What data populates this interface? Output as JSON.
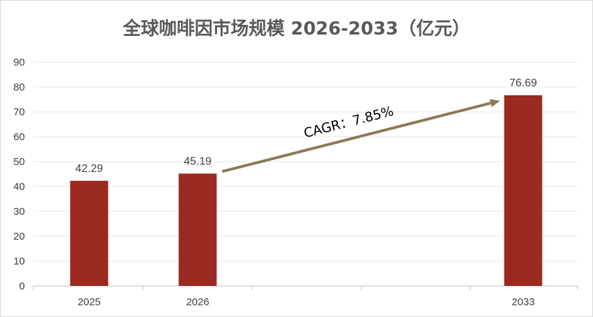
{
  "chart_data": {
    "type": "bar",
    "title": "全球咖啡因市场规模 2026-2033（亿元）",
    "categories": [
      "2025",
      "2026",
      "2033"
    ],
    "values": [
      42.29,
      45.19,
      76.69
    ],
    "value_labels": [
      "42.29",
      "45.19",
      "76.69"
    ],
    "y_ticks": [
      "0",
      "10",
      "20",
      "30",
      "40",
      "50",
      "60",
      "70",
      "80",
      "90"
    ],
    "ylim": [
      0,
      90
    ],
    "grid": true,
    "bar_color": "#9a2a1f",
    "annotation": {
      "text": "CAGR：7.85%",
      "from_category": "2026",
      "to_category": "2033",
      "arrow_color": "#8b7a58"
    }
  }
}
